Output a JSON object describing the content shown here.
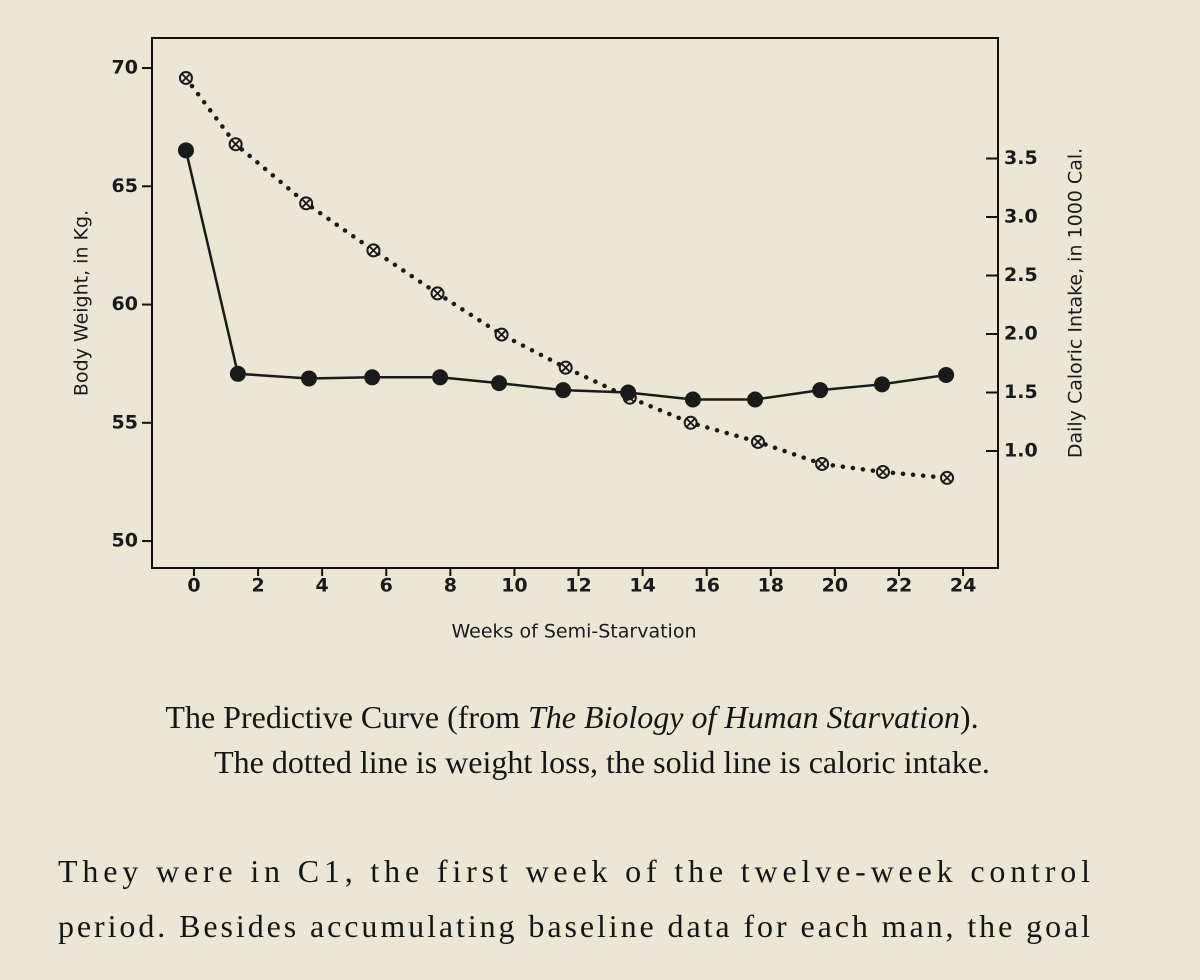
{
  "chart_data": {
    "type": "line",
    "xlabel": "Weeks of Semi-Starvation",
    "ylabel": "Body Weight, in Kg.",
    "y2label": "Daily Caloric Intake, in 1000 Cal.",
    "xlim": [
      -1.31,
      25.09
    ],
    "ylim": [
      48.86,
      71.27
    ],
    "y2lim": [
      0,
      4.53
    ],
    "xticks": [
      0,
      2,
      4,
      6,
      8,
      10,
      12,
      14,
      16,
      18,
      20,
      22,
      24
    ],
    "yticks": [
      50,
      55,
      60,
      65,
      70
    ],
    "y2ticks": [
      {
        "value": 1,
        "label": "1.0"
      },
      1.5,
      {
        "value": 2,
        "label": "2.0"
      },
      2.5,
      {
        "value": 3,
        "label": "3.0"
      },
      3.5
    ],
    "grid": false,
    "series": [
      {
        "color": "#1a1a1a",
        "linestyle": "dotted",
        "marker": "circle-x",
        "axis": "y",
        "x": [
          -0.25,
          1.3,
          3.5,
          5.6,
          7.6,
          9.6,
          11.6,
          13.6,
          15.5,
          17.6,
          19.6,
          21.5,
          23.5
        ],
        "values": [
          69.58,
          66.78,
          64.28,
          62.29,
          60.47,
          58.73,
          57.33,
          56.06,
          55.0,
          54.19,
          53.26,
          52.92,
          52.67
        ]
      },
      {
        "color": "#1a1a1a",
        "linestyle": "solid",
        "marker": "filled-circle",
        "axis": "y2",
        "x": [
          -0.25,
          1.37,
          3.59,
          5.56,
          7.68,
          9.52,
          11.52,
          13.55,
          15.57,
          17.51,
          19.54,
          21.47,
          23.47
        ],
        "values": [
          3.57,
          1.66,
          1.62,
          1.63,
          1.63,
          1.58,
          1.52,
          1.5,
          1.44,
          1.44,
          1.52,
          1.57,
          1.65
        ]
      }
    ]
  },
  "caption": {
    "before": "The Predictive Curve (from ",
    "italic": "The Biology of Human Starvation",
    "after": ")."
  },
  "note": "The dotted line is weight loss, the solid line is caloric intake.",
  "paragraph": [
    "They were in C1, the first week of the twelve-week control",
    "period. Besides accumulating baseline data for each man, the goal"
  ]
}
